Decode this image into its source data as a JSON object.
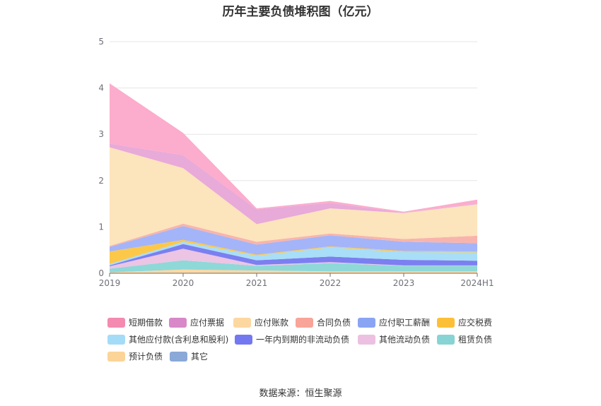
{
  "chart_data": {
    "type": "area",
    "title": "历年主要负债堆积图（亿元）",
    "source": "数据来源：恒生聚源",
    "x": [
      "2019",
      "2020",
      "2021",
      "2022",
      "2023",
      "2024H1"
    ],
    "ylim": [
      0,
      5
    ],
    "yticks": [
      "0",
      "1",
      "2",
      "3",
      "4",
      "5"
    ],
    "grid": true,
    "legend_position": "bottom",
    "series": [
      {
        "name": "预计负债",
        "color": "#fcd8a4",
        "values": [
          0.02,
          0.08,
          0.06,
          0.04,
          0.04,
          0.04
        ]
      },
      {
        "name": "租赁负债",
        "color": "#8ed8d8",
        "values": [
          0.08,
          0.2,
          0.1,
          0.18,
          0.12,
          0.12
        ]
      },
      {
        "name": "其他流动负债",
        "color": "#ecc4e4",
        "values": [
          0.05,
          0.25,
          0.02,
          0.02,
          0.01,
          0.01
        ]
      },
      {
        "name": "一年内到期的非流动负债",
        "color": "#7b7ff0",
        "values": [
          0.02,
          0.1,
          0.1,
          0.12,
          0.12,
          0.1
        ]
      },
      {
        "name": "其他应付款(含利息和股利)",
        "color": "#a8def8",
        "values": [
          0.03,
          0.05,
          0.1,
          0.2,
          0.17,
          0.18
        ]
      },
      {
        "name": "应交税费",
        "color": "#fcc84a",
        "values": [
          0.27,
          0.04,
          0.02,
          0.02,
          0.02,
          0.02
        ]
      },
      {
        "name": "应付职工薪酬",
        "color": "#a4b4f8",
        "values": [
          0.1,
          0.3,
          0.22,
          0.24,
          0.2,
          0.18
        ]
      },
      {
        "name": "合同负债",
        "color": "#f8b4ac",
        "values": [
          0.02,
          0.05,
          0.06,
          0.04,
          0.06,
          0.16
        ]
      },
      {
        "name": "应付账款",
        "color": "#fce4bc",
        "values": [
          2.13,
          1.2,
          0.38,
          0.54,
          0.56,
          0.68
        ]
      },
      {
        "name": "应付票据",
        "color": "#e8aad8",
        "values": [
          0.08,
          0.28,
          0.32,
          0.12,
          0.01,
          0.02
        ]
      },
      {
        "name": "短期借款",
        "color": "#fcaccc",
        "values": [
          1.3,
          0.48,
          0.02,
          0.04,
          0.02,
          0.08
        ]
      },
      {
        "name": "其它",
        "color": "#8eacdc",
        "values": [
          0,
          0,
          0,
          0,
          0,
          0
        ]
      }
    ],
    "legend": [
      {
        "name": "短期借款",
        "color": "#f48ab0"
      },
      {
        "name": "应付票据",
        "color": "#d888c8"
      },
      {
        "name": "应付账款",
        "color": "#fcd8a0"
      },
      {
        "name": "合同负债",
        "color": "#f8a498"
      },
      {
        "name": "应付职工薪酬",
        "color": "#8aa4f4"
      },
      {
        "name": "应交税费",
        "color": "#fcc038"
      },
      {
        "name": "其他应付款(含利息和股利)",
        "color": "#a4dcf8"
      },
      {
        "name": "一年内到期的非流动负债",
        "color": "#7478f0"
      },
      {
        "name": "其他流动负债",
        "color": "#ecc0e0"
      },
      {
        "name": "租赁负债",
        "color": "#88d4d4"
      },
      {
        "name": "预计负债",
        "color": "#fcd498"
      },
      {
        "name": "其它",
        "color": "#8aa8d8"
      }
    ]
  }
}
